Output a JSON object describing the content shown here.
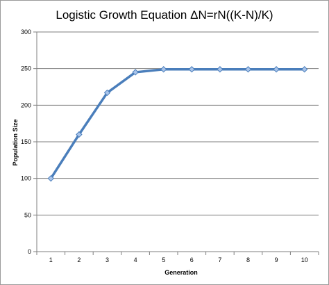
{
  "chart_data": {
    "type": "line",
    "title": "Logistic Growth  Equation ΔN=rN((K-N)/K)",
    "xlabel": "Generation",
    "ylabel": "Population  Size",
    "categories": [
      "1",
      "2",
      "3",
      "4",
      "5",
      "6",
      "7",
      "8",
      "9",
      "10"
    ],
    "series": [
      {
        "values": [
          100,
          160,
          217,
          245,
          249,
          249,
          249,
          249,
          249,
          249
        ]
      }
    ],
    "ylim": [
      0,
      300
    ],
    "yticks": [
      0,
      50,
      100,
      150,
      200,
      250,
      300
    ],
    "grid": "horizontal",
    "legend": "none",
    "colors": {
      "line": "#4a7ebb",
      "marker_fill": "#a9c4ea",
      "marker_stroke": "#4a7ebb",
      "grid": "#7f7f7f",
      "axis": "#7f7f7f"
    }
  }
}
